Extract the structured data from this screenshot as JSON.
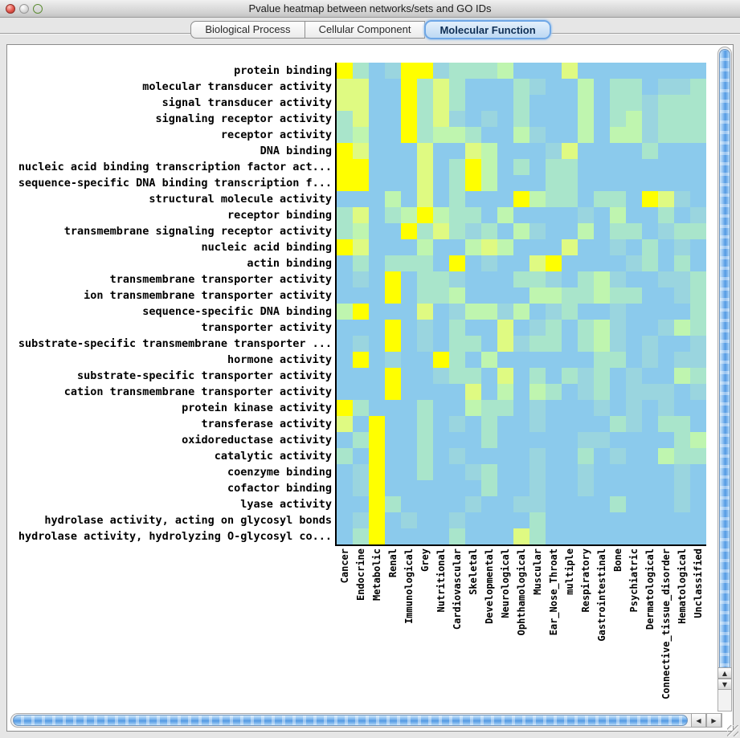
{
  "window": {
    "title": "Pvalue heatmap between networks/sets and GO IDs",
    "traffic_light_colors": {
      "close": "#e2544a",
      "minimize": "#dadada",
      "zoom": "#8abd52"
    }
  },
  "tabs": [
    {
      "label": "Biological Process",
      "selected": false
    },
    {
      "label": "Cellular Component",
      "selected": false
    },
    {
      "label": "Molecular Function",
      "selected": true
    }
  ],
  "icons": {
    "up": "▲",
    "down": "▼",
    "left": "◀",
    "right": "▶"
  },
  "accent_colors": {
    "tab_highlight": "#6ea7e6",
    "scrollbar_thumb": "#539ae2"
  },
  "chart_data": {
    "type": "heatmap",
    "title": "Pvalue heatmap between networks/sets and GO IDs",
    "value_scale": "color level 0 (low, blue) to 5 (high, yellow)",
    "palette": [
      "#8bcaec",
      "#9ad5df",
      "#a9e5cb",
      "#bff5af",
      "#dffa82",
      "#ffff00"
    ],
    "rows": [
      "protein binding",
      "molecular transducer activity",
      "signal transducer activity",
      "signaling receptor activity",
      "receptor activity",
      "DNA binding",
      "nucleic acid binding transcription factor act...",
      "sequence-specific DNA binding transcription f...",
      "structural molecule activity",
      "receptor binding",
      "transmembrane signaling receptor activity",
      "nucleic acid binding",
      "actin binding",
      "transmembrane transporter activity",
      "ion transmembrane transporter activity",
      "sequence-specific DNA binding",
      "transporter activity",
      "substrate-specific transmembrane transporter ...",
      "hormone activity",
      "substrate-specific transporter activity",
      "cation transmembrane transporter activity",
      "protein kinase activity",
      "transferase activity",
      "oxidoreductase activity",
      "catalytic activity",
      "coenzyme binding",
      "cofactor binding",
      "lyase activity",
      "hydrolase activity, acting on glycosyl bonds",
      "hydrolase activity, hydrolyzing O-glycosyl co..."
    ],
    "columns": [
      "Cancer",
      "Endocrine",
      "Metabolic",
      "Renal",
      "Immunological",
      "Grey",
      "Nutritional",
      "Cardiovascular",
      "Skeletal",
      "Developmental",
      "Neurological",
      "Ophthamological",
      "Muscular",
      "Ear_Nose_Throat",
      "multiple",
      "Respiratory",
      "Gastrointestinal",
      "Bone",
      "Psychiatric",
      "Dermatological",
      "Connective_tissue_disorder",
      "Hematological",
      "Unclassified"
    ],
    "values": [
      [
        5,
        2,
        0,
        1,
        5,
        5,
        1,
        2,
        2,
        2,
        3,
        0,
        0,
        0,
        4,
        0,
        0,
        0,
        0,
        0,
        0,
        0,
        0
      ],
      [
        4,
        4,
        0,
        0,
        5,
        2,
        4,
        2,
        0,
        0,
        0,
        2,
        1,
        0,
        0,
        3,
        0,
        2,
        2,
        0,
        1,
        1,
        2
      ],
      [
        4,
        4,
        0,
        0,
        5,
        2,
        4,
        2,
        0,
        0,
        0,
        2,
        0,
        0,
        0,
        3,
        0,
        2,
        2,
        1,
        2,
        2,
        2
      ],
      [
        2,
        4,
        0,
        0,
        5,
        2,
        4,
        1,
        0,
        1,
        0,
        2,
        0,
        0,
        0,
        3,
        0,
        2,
        3,
        1,
        2,
        2,
        2
      ],
      [
        2,
        3,
        0,
        0,
        5,
        2,
        3,
        3,
        2,
        0,
        0,
        3,
        1,
        0,
        0,
        3,
        0,
        3,
        3,
        1,
        2,
        2,
        2
      ],
      [
        5,
        4,
        0,
        0,
        0,
        4,
        0,
        0,
        4,
        3,
        0,
        0,
        0,
        1,
        4,
        0,
        0,
        0,
        0,
        2,
        0,
        0,
        0
      ],
      [
        5,
        5,
        0,
        0,
        0,
        4,
        0,
        2,
        5,
        3,
        0,
        2,
        0,
        2,
        2,
        0,
        0,
        0,
        0,
        0,
        0,
        0,
        0
      ],
      [
        5,
        5,
        0,
        0,
        0,
        4,
        0,
        2,
        5,
        3,
        0,
        0,
        0,
        2,
        2,
        0,
        0,
        0,
        0,
        0,
        0,
        0,
        0
      ],
      [
        0,
        0,
        0,
        3,
        0,
        4,
        0,
        2,
        0,
        0,
        0,
        5,
        3,
        2,
        2,
        0,
        2,
        2,
        0,
        5,
        4,
        1,
        0
      ],
      [
        2,
        4,
        0,
        2,
        3,
        5,
        3,
        2,
        2,
        0,
        3,
        0,
        0,
        0,
        0,
        1,
        0,
        3,
        0,
        0,
        2,
        0,
        1
      ],
      [
        2,
        3,
        0,
        0,
        5,
        2,
        4,
        2,
        1,
        2,
        0,
        3,
        1,
        0,
        0,
        3,
        0,
        2,
        2,
        0,
        1,
        2,
        2
      ],
      [
        5,
        4,
        0,
        0,
        0,
        3,
        0,
        0,
        3,
        4,
        3,
        0,
        0,
        0,
        4,
        0,
        0,
        1,
        0,
        2,
        0,
        1,
        0
      ],
      [
        0,
        2,
        0,
        2,
        2,
        2,
        0,
        5,
        0,
        1,
        0,
        0,
        4,
        5,
        0,
        0,
        0,
        0,
        1,
        2,
        0,
        2,
        0
      ],
      [
        0,
        1,
        0,
        5,
        0,
        2,
        2,
        1,
        0,
        0,
        0,
        2,
        2,
        1,
        0,
        2,
        3,
        1,
        0,
        0,
        1,
        1,
        2
      ],
      [
        0,
        0,
        0,
        5,
        0,
        2,
        2,
        3,
        0,
        0,
        0,
        0,
        3,
        3,
        2,
        2,
        3,
        2,
        2,
        0,
        0,
        1,
        2
      ],
      [
        3,
        5,
        0,
        0,
        0,
        4,
        0,
        1,
        3,
        3,
        1,
        3,
        0,
        1,
        2,
        0,
        0,
        1,
        0,
        0,
        0,
        0,
        2
      ],
      [
        0,
        0,
        0,
        5,
        0,
        1,
        0,
        2,
        0,
        0,
        4,
        0,
        1,
        2,
        0,
        2,
        3,
        1,
        0,
        0,
        1,
        3,
        2
      ],
      [
        0,
        1,
        0,
        5,
        0,
        1,
        0,
        2,
        2,
        0,
        4,
        1,
        2,
        2,
        0,
        2,
        3,
        1,
        0,
        1,
        0,
        0,
        1
      ],
      [
        0,
        5,
        0,
        1,
        0,
        0,
        5,
        2,
        0,
        3,
        0,
        0,
        0,
        0,
        0,
        0,
        2,
        2,
        0,
        1,
        0,
        1,
        1
      ],
      [
        0,
        0,
        0,
        5,
        0,
        0,
        1,
        2,
        2,
        0,
        4,
        0,
        2,
        0,
        2,
        1,
        2,
        0,
        1,
        0,
        0,
        3,
        2
      ],
      [
        0,
        0,
        0,
        5,
        0,
        0,
        0,
        0,
        4,
        0,
        3,
        0,
        3,
        2,
        0,
        1,
        2,
        0,
        1,
        1,
        1,
        0,
        1
      ],
      [
        5,
        2,
        0,
        0,
        0,
        2,
        0,
        0,
        3,
        2,
        2,
        0,
        1,
        0,
        0,
        0,
        1,
        0,
        1,
        0,
        1,
        0,
        0
      ],
      [
        4,
        0,
        5,
        0,
        0,
        2,
        0,
        1,
        0,
        2,
        0,
        0,
        1,
        0,
        0,
        0,
        0,
        2,
        1,
        0,
        2,
        2,
        0
      ],
      [
        0,
        2,
        5,
        0,
        0,
        2,
        0,
        0,
        0,
        2,
        0,
        0,
        0,
        0,
        0,
        1,
        1,
        0,
        0,
        0,
        0,
        2,
        3
      ],
      [
        2,
        0,
        5,
        0,
        0,
        2,
        0,
        1,
        0,
        0,
        0,
        0,
        1,
        0,
        0,
        2,
        0,
        1,
        0,
        0,
        3,
        2,
        2
      ],
      [
        0,
        1,
        5,
        0,
        0,
        2,
        0,
        0,
        1,
        2,
        0,
        0,
        1,
        0,
        0,
        1,
        0,
        0,
        0,
        0,
        0,
        1,
        0
      ],
      [
        0,
        1,
        5,
        0,
        0,
        0,
        0,
        0,
        0,
        2,
        0,
        0,
        1,
        0,
        0,
        1,
        0,
        0,
        0,
        0,
        0,
        1,
        0
      ],
      [
        0,
        0,
        5,
        2,
        0,
        0,
        0,
        0,
        1,
        0,
        0,
        1,
        1,
        0,
        0,
        0,
        0,
        2,
        0,
        0,
        0,
        1,
        0
      ],
      [
        0,
        1,
        5,
        0,
        1,
        0,
        0,
        1,
        0,
        0,
        0,
        0,
        2,
        0,
        0,
        0,
        0,
        0,
        0,
        0,
        0,
        0,
        0
      ],
      [
        0,
        2,
        5,
        0,
        0,
        0,
        0,
        2,
        0,
        0,
        0,
        4,
        2,
        0,
        0,
        0,
        0,
        0,
        0,
        0,
        0,
        0,
        0
      ]
    ]
  }
}
